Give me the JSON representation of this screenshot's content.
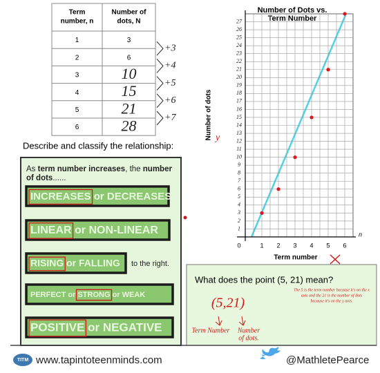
{
  "table": {
    "headers": [
      [
        "Term",
        "number, n"
      ],
      [
        "Number of",
        "dots, N"
      ]
    ],
    "rows": [
      [
        1,
        3
      ],
      [
        2,
        6
      ],
      [
        3,
        10
      ],
      [
        4,
        15
      ],
      [
        5,
        21
      ],
      [
        6,
        28
      ]
    ],
    "differences": [
      "+3",
      "+4",
      "+5",
      "+6",
      "+7"
    ]
  },
  "prompt": "Describe and classify the relationship:",
  "classify": {
    "intro": [
      {
        "text": "As ",
        "bold": false
      },
      {
        "text": "term number increases",
        "bold": true
      },
      {
        "text": ", the ",
        "bold": false
      },
      {
        "text": "number",
        "bold": true
      }
    ],
    "intro2": [
      {
        "text": "of dots",
        "bold": true
      },
      {
        "text": "......",
        "bold": false
      }
    ],
    "options": [
      {
        "parts": [
          {
            "text": "INCREASES",
            "circled": true
          },
          {
            "text": " or DECREASES",
            "circled": false
          }
        ]
      },
      {
        "parts": [
          {
            "text": "LINEAR",
            "circled": true
          },
          {
            "text": " or NON-LINEAR",
            "circled": false
          }
        ]
      },
      {
        "parts": [
          {
            "text": "RISING",
            "circled": true
          },
          {
            "text": " or FALLING",
            "circled": false
          }
        ],
        "suffix": "to the right."
      },
      {
        "parts": [
          {
            "text": "PERFECT or ",
            "circled": false
          },
          {
            "text": "STRONG",
            "circled": true
          },
          {
            "text": " or WEAK",
            "circled": false
          }
        ]
      },
      {
        "parts": [
          {
            "text": "POSITIVE",
            "circled": true
          },
          {
            "text": " or NEGATIVE",
            "circled": false
          }
        ]
      }
    ]
  },
  "question": {
    "text": "What does the point (5, 21) mean?",
    "note": [
      "The 5 is the term number because it's on the x",
      "axis and the 21 is the number of dots",
      "because it's on the y axis."
    ],
    "point": "(5,21)",
    "label_x": "Term Number",
    "label_y": [
      "Number",
      "of dots."
    ]
  },
  "annotations": {
    "y_mark": "y"
  },
  "footer": {
    "logo": "TITM",
    "site": "www.tapintoteenminds.com",
    "handle": "@MathletePearce"
  },
  "chart_data": {
    "type": "scatter",
    "title": [
      "Number of Dots vs.",
      "Term Number"
    ],
    "x_label": "Term number",
    "y_label": "Number of dots",
    "x_var": "n",
    "x": [
      1,
      2,
      3,
      4,
      5,
      6
    ],
    "values": [
      3,
      6,
      10,
      15,
      21,
      28
    ],
    "color": "#e0141e",
    "xlim": [
      0,
      6.5
    ],
    "ylim": [
      0,
      28
    ],
    "xticks": [
      0,
      1,
      2,
      3,
      4,
      5,
      6
    ],
    "yticks": [
      1,
      2,
      3,
      4,
      5,
      6,
      7,
      8,
      9,
      10,
      11,
      12,
      13,
      14,
      15,
      16,
      17,
      18,
      19,
      20,
      21,
      22,
      23,
      24,
      25,
      26,
      27
    ],
    "grid": true
  }
}
